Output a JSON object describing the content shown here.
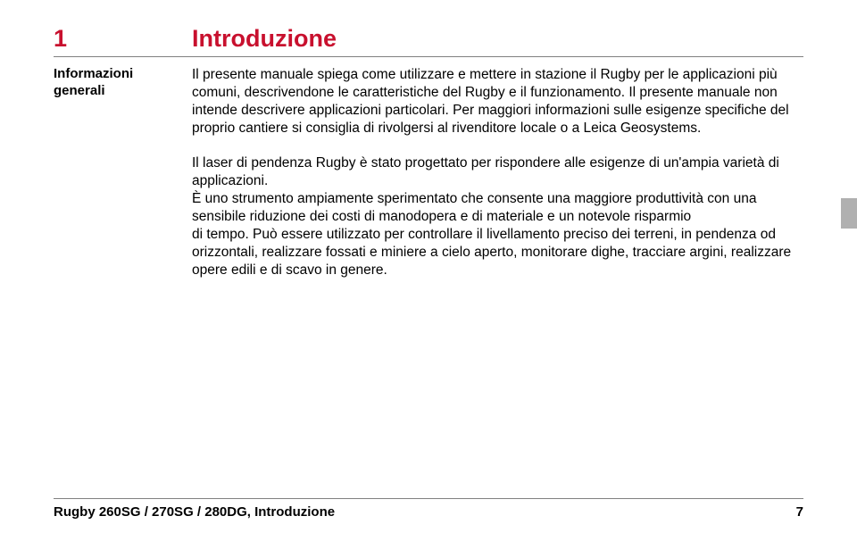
{
  "colors": {
    "accent": "#c8102e",
    "text": "#000000",
    "rule": "#808080",
    "tab": "#b0b0b0",
    "bg": "#ffffff"
  },
  "typography": {
    "body_fontsize": 15.5,
    "heading_fontsize": 27,
    "sidebar_fontsize": 15,
    "footer_fontsize": 15
  },
  "chapter": {
    "number": "1",
    "title": "Introduzione"
  },
  "sidebar": {
    "line1": "Informazioni",
    "line2": "generali"
  },
  "body": {
    "para1": "Il presente manuale spiega come utilizzare e mettere in stazione il Rugby per le applicazioni più comuni, descrivendone le caratteristiche del Rugby e il funzionamento. Il presente manuale non intende descrivere applicazioni particolari. Per maggiori informazioni sulle esigenze specifiche del proprio cantiere si consiglia di rivolgersi al rivenditore locale o a Leica Geosystems.",
    "para2a": "Il laser di pendenza Rugby è stato progettato per rispondere alle esigenze di un'ampia varietà di applicazioni.",
    "para2b": "È uno strumento ampiamente sperimentato che consente una maggiore produttività con una sensibile riduzione dei costi di manodopera e di materiale e un notevole risparmio",
    "para2c": "di tempo. Può essere utilizzato per controllare il livellamento preciso dei terreni, in pendenza od orizzontali, realizzare fossati e miniere a cielo aperto, monitorare dighe, tracciare argini, realizzare opere edili e di scavo in genere."
  },
  "footer": {
    "left": "Rugby 260SG / 270SG / 280DG, Introduzione",
    "pagenum": "7"
  }
}
